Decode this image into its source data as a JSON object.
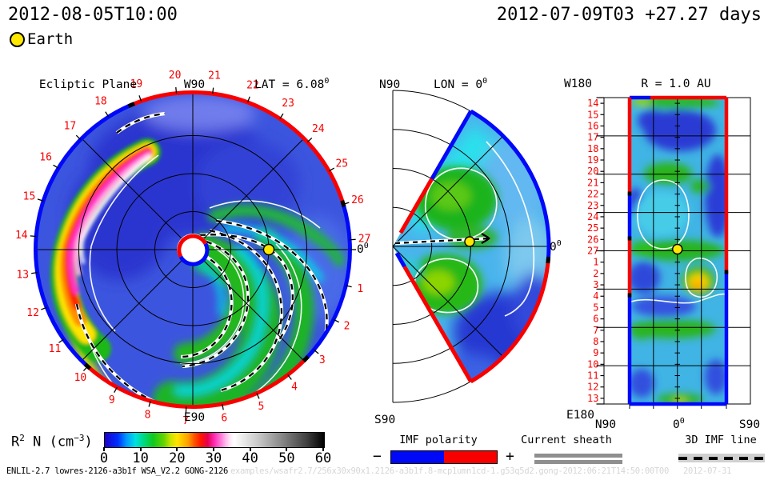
{
  "header": {
    "left_datetime": "2012-08-05T10:00",
    "right_datetime": "2012-07-09T03 +27.27 days",
    "earth_label": "Earth"
  },
  "earth_marker_color": "#ffe800",
  "panels": {
    "ecliptic": {
      "title": "Ecliptic Plane",
      "top_label": "W90",
      "bottom_label": "E90",
      "lat_label": {
        "text": "LAT = 6.08",
        "sup": "0"
      },
      "zero_label": {
        "text": "0",
        "sup": "0"
      }
    },
    "meridional": {
      "top_label": "N90",
      "bottom_label": "S90",
      "lon_label": {
        "text": "LON = 0",
        "sup": "0"
      },
      "zero_label": {
        "text": "0",
        "sup": "0"
      }
    },
    "radial": {
      "title": "R = 1.0 AU",
      "top_left_label": "W180",
      "bottom_left_label": "E180",
      "x_left": "N90",
      "x_center": {
        "text": "0",
        "sup": "0"
      },
      "x_right": "S90"
    }
  },
  "colorbar": {
    "label_base": "R",
    "label_sup": "2",
    "label_mid": " N (cm",
    "label_sup2": "−3",
    "label_end": ")"
  },
  "legends": {
    "imf": {
      "title": "IMF polarity",
      "minus": "−",
      "plus": "+",
      "negative_color": "#0008f8",
      "positive_color": "#f80000"
    },
    "current_sheath": {
      "title": "Current sheath",
      "color": "#8f8f8f"
    },
    "imf_line": {
      "title": "3D IMF line"
    }
  },
  "footer": {
    "model_info": "ENLIL-2.7 lowres-2126-a3b1f WSA_V2.2 GONG-2126",
    "watermark": "examples/wsafr2.7/256x30x90x1.2126-a3b1f.8-mcp1umn1cd-1.g53q5d2.gong-2012:06:21T14:50:00T00",
    "watermark_date": "2012-07-31"
  },
  "chart_data": {
    "type": "heatmap",
    "model": "WSA-ENLIL solar wind density forecast",
    "quantity_label": "R^2 N (cm^-3)",
    "value_range": [
      0,
      60
    ],
    "colorbar_ticks": [
      0,
      10,
      20,
      30,
      40,
      50,
      60
    ],
    "colorbar_stops": [
      [
        0.0,
        "#1c00cc"
      ],
      [
        0.06,
        "#0030ff"
      ],
      [
        0.1,
        "#009cff"
      ],
      [
        0.14,
        "#00e0e0"
      ],
      [
        0.18,
        "#00d87c"
      ],
      [
        0.22,
        "#10c81e"
      ],
      [
        0.27,
        "#66d400"
      ],
      [
        0.3,
        "#c8e400"
      ],
      [
        0.33,
        "#ffe400"
      ],
      [
        0.38,
        "#ffa000"
      ],
      [
        0.41,
        "#ff5000"
      ],
      [
        0.44,
        "#ff1400"
      ],
      [
        0.47,
        "#e60050"
      ],
      [
        0.5,
        "#ff2cb4"
      ],
      [
        0.53,
        "#ff7ad8"
      ],
      [
        0.55,
        "#ffb4ea"
      ],
      [
        0.57,
        "#ffe4f6"
      ],
      [
        0.59,
        "#ffffff"
      ],
      [
        0.7,
        "#c8c8c8"
      ],
      [
        0.8,
        "#8c8c8c"
      ],
      [
        0.92,
        "#404040"
      ],
      [
        1.0,
        "#000000"
      ]
    ],
    "rotation_period_days": 27.27,
    "ecliptic_time_marks": [
      1,
      2,
      3,
      4,
      5,
      6,
      7,
      8,
      9,
      10,
      11,
      12,
      13,
      14,
      15,
      16,
      17,
      18,
      19,
      20,
      21,
      22,
      23,
      24,
      25,
      26,
      27
    ],
    "radial_row_marks": [
      14,
      15,
      16,
      17,
      18,
      19,
      20,
      21,
      22,
      23,
      24,
      25,
      26,
      27,
      1,
      2,
      3,
      4,
      5,
      6,
      7,
      8,
      9,
      10,
      11,
      12,
      13
    ],
    "panel_descriptions": [
      "Ecliptic plane cut at LAT = 6.08 deg",
      "Meridional cut at LON = 0 deg",
      "Radial map at R = 1.0 AU"
    ],
    "imf_polarity_colors": {
      "negative": "#0008f8",
      "positive": "#f80000"
    },
    "earth_marker": "yellow circle at 1 AU"
  }
}
